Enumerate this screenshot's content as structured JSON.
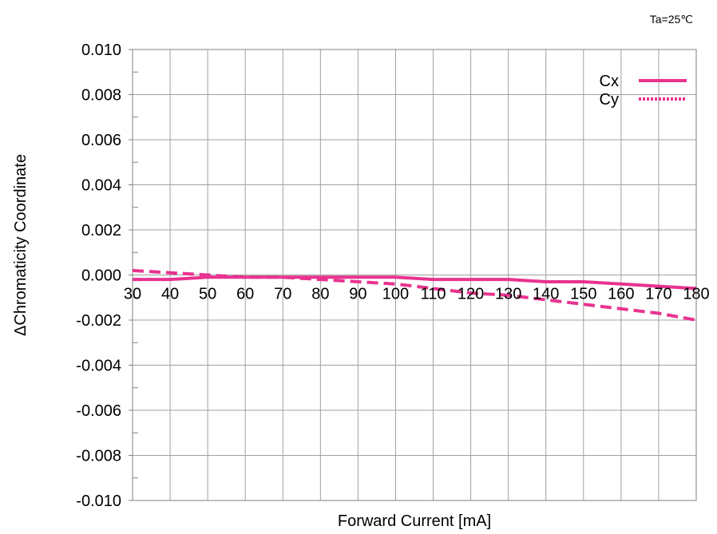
{
  "chart_data": {
    "type": "line",
    "annotation": "Ta=25℃",
    "xlabel": "Forward Current [mA]",
    "ylabel": "ΔChromaticity Coordinate",
    "xlim": [
      30,
      180
    ],
    "ylim": [
      -0.01,
      0.01
    ],
    "x_ticks": [
      "30",
      "40",
      "50",
      "60",
      "70",
      "80",
      "90",
      "100",
      "110",
      "120",
      "130",
      "140",
      "150",
      "160",
      "170",
      "180"
    ],
    "y_ticks": [
      "0.010",
      "0.008",
      "0.006",
      "0.004",
      "0.002",
      "0.000",
      "-0.002",
      "-0.004",
      "-0.006",
      "-0.008",
      "-0.010"
    ],
    "grid": true,
    "legend_position": "top-right",
    "color": "#e8338f",
    "series": [
      {
        "name": "Cx",
        "style": "solid",
        "x": [
          30,
          40,
          50,
          60,
          70,
          80,
          90,
          100,
          110,
          120,
          130,
          140,
          150,
          160,
          170,
          180
        ],
        "y": [
          -0.0002,
          -0.0002,
          -0.0001,
          -0.0001,
          -0.0001,
          -0.0001,
          -0.0001,
          -0.0001,
          -0.0002,
          -0.0002,
          -0.0002,
          -0.0003,
          -0.0003,
          -0.0004,
          -0.0005,
          -0.0006
        ]
      },
      {
        "name": "Cy",
        "style": "dashed",
        "x": [
          30,
          40,
          50,
          60,
          70,
          80,
          90,
          100,
          110,
          120,
          130,
          140,
          150,
          160,
          170,
          180
        ],
        "y": [
          0.0002,
          0.0001,
          0.0,
          -0.0001,
          -0.0001,
          -0.0002,
          -0.0003,
          -0.0004,
          -0.0006,
          -0.0008,
          -0.0009,
          -0.0011,
          -0.0013,
          -0.0015,
          -0.0017,
          -0.002
        ]
      }
    ]
  }
}
